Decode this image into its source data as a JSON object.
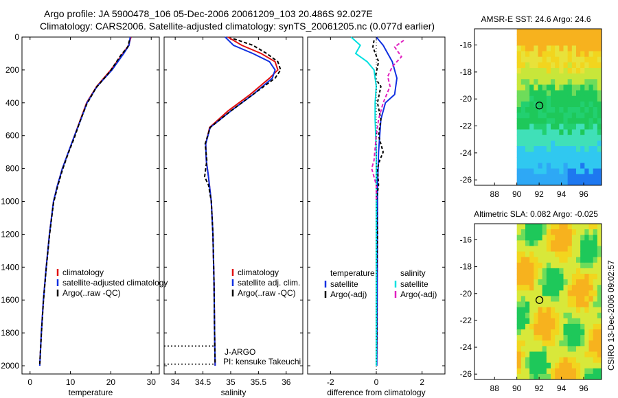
{
  "header": {
    "line1": "Argo profile: JA 5900478_106 05-Dec-2006 20061209_103 20.486S 92.027E",
    "line2": "Climatology: CARS2006. Satellite-adjusted climatology: synTS_20061205.nc (0.077d earlier)"
  },
  "colors": {
    "climatology": "#e01010",
    "satellite": "#1030e0",
    "argo": "#000000",
    "salinity_satellite": "#00e0e0",
    "salinity_argo": "#e020c0"
  },
  "stamp": "CSIRO 13-Dec-2006 09:02:57",
  "chart_data": [
    {
      "id": "temperature",
      "type": "line",
      "xlabel": "temperature",
      "ylabel": "",
      "xlim": [
        -2,
        32
      ],
      "ylim": [
        2050,
        0
      ],
      "xticks": [
        0,
        10,
        20,
        30
      ],
      "yticks": [
        0,
        200,
        400,
        600,
        800,
        1000,
        1200,
        1400,
        1600,
        1800,
        2000
      ],
      "legend": [
        "climatology",
        "satellite-adjusted climatology",
        "Argo(..raw -QC)"
      ],
      "series": [
        {
          "name": "climatology",
          "color": "#e01010",
          "dash": "",
          "x": [
            25.0,
            24.4,
            23.0,
            20.0,
            16.5,
            14.0,
            12.5,
            11.0,
            9.5,
            8.0,
            6.8,
            5.8,
            4.8,
            4.0,
            3.3,
            2.8,
            2.4
          ],
          "y": [
            0,
            50,
            100,
            200,
            300,
            400,
            500,
            600,
            700,
            800,
            900,
            1000,
            1200,
            1400,
            1600,
            1800,
            2000
          ]
        },
        {
          "name": "satellite-adjusted climatology",
          "color": "#1030e0",
          "dash": "",
          "x": [
            24.8,
            24.5,
            23.2,
            20.3,
            16.6,
            14.1,
            12.6,
            11.0,
            9.5,
            8.0,
            6.8,
            5.8,
            4.8,
            4.0,
            3.3,
            2.8,
            2.4
          ],
          "y": [
            0,
            50,
            100,
            200,
            300,
            400,
            500,
            600,
            700,
            800,
            900,
            1000,
            1200,
            1400,
            1600,
            1800,
            2000
          ]
        },
        {
          "name": "Argo(..raw -QC)",
          "color": "#000000",
          "dash": "5,3",
          "x": [
            24.6,
            24.2,
            22.5,
            19.8,
            16.3,
            14.0,
            12.4,
            11.0,
            9.4,
            8.0,
            6.8,
            5.8,
            4.8,
            4.0,
            3.3,
            2.8,
            2.4
          ],
          "y": [
            20,
            60,
            110,
            210,
            310,
            410,
            510,
            610,
            710,
            810,
            910,
            1010,
            1210,
            1410,
            1610,
            1810,
            1990
          ]
        }
      ]
    },
    {
      "id": "salinity",
      "type": "line",
      "xlabel": "salinity",
      "ylabel": "",
      "xlim": [
        33.8,
        36.3
      ],
      "ylim": [
        2050,
        0
      ],
      "xticks": [
        34,
        34.5,
        35,
        35.5,
        36
      ],
      "legend": [
        "climatology",
        "satellite adj. clim.",
        "Argo(..raw -QC)"
      ],
      "annotation": [
        "J-ARGO",
        "PI: kensuke Takeuchi"
      ],
      "markers": [
        1880,
        1990
      ],
      "series": [
        {
          "name": "climatology",
          "color": "#e01010",
          "dash": "",
          "x": [
            34.95,
            35.2,
            35.55,
            35.8,
            35.85,
            35.7,
            35.35,
            34.95,
            34.62,
            34.55,
            34.56,
            34.6,
            34.65,
            34.68,
            34.7,
            34.71,
            34.72
          ],
          "y": [
            0,
            50,
            100,
            150,
            200,
            250,
            350,
            450,
            550,
            650,
            750,
            850,
            1000,
            1200,
            1500,
            1800,
            2000
          ]
        },
        {
          "name": "satellite adj. clim.",
          "color": "#1030e0",
          "dash": "",
          "x": [
            34.9,
            35.05,
            35.4,
            35.7,
            35.8,
            35.75,
            35.4,
            35.0,
            34.63,
            34.55,
            34.56,
            34.6,
            34.65,
            34.68,
            34.7,
            34.71,
            34.72
          ],
          "y": [
            0,
            50,
            100,
            150,
            200,
            250,
            350,
            450,
            550,
            650,
            750,
            850,
            1000,
            1200,
            1500,
            1800,
            2000
          ]
        },
        {
          "name": "Argo(..raw -QC)",
          "color": "#000000",
          "dash": "5,3",
          "x": [
            35.05,
            35.4,
            35.65,
            35.85,
            35.9,
            35.8,
            35.4,
            35.0,
            34.63,
            34.54,
            34.57,
            34.53,
            34.6,
            34.65,
            34.68,
            34.7,
            34.71,
            34.72
          ],
          "y": [
            10,
            50,
            100,
            150,
            200,
            250,
            350,
            450,
            550,
            650,
            750,
            850,
            900,
            1000,
            1200,
            1500,
            1800,
            1990
          ]
        }
      ]
    },
    {
      "id": "difference",
      "type": "line",
      "xlabel": "difference from climatology",
      "ylabel": "",
      "xlim": [
        -3,
        3
      ],
      "ylim": [
        2050,
        0
      ],
      "xticks": [
        -2,
        0,
        2
      ],
      "legend_title_left": "temperature",
      "legend_title_right": "salinity",
      "legend": [
        "satellite",
        "Argo(-adj)",
        "satellite",
        "Argo(-adj)"
      ],
      "series": [
        {
          "name": "temperature satellite",
          "color": "#1030e0",
          "dash": "",
          "x": [
            0.0,
            0.3,
            0.7,
            0.9,
            0.8,
            0.4,
            0.2,
            0.15,
            0.1,
            0.08,
            0.05,
            0.05,
            0.04,
            0.03,
            0.02
          ],
          "y": [
            0,
            50,
            150,
            250,
            350,
            400,
            500,
            600,
            700,
            800,
            900,
            1200,
            1500,
            1800,
            2000
          ]
        },
        {
          "name": "temperature Argo(-adj)",
          "color": "#000000",
          "dash": "4,3",
          "x": [
            -0.1,
            -0.15,
            0.1,
            -0.05,
            0.2,
            0.05,
            0.2,
            0.1,
            0.3,
            0.15,
            0.05,
            0.1,
            0.0,
            0.05,
            0.0,
            0.02,
            0.0
          ],
          "y": [
            20,
            60,
            150,
            250,
            300,
            400,
            500,
            600,
            700,
            750,
            800,
            900,
            1000,
            1200,
            1500,
            1800,
            1990
          ]
        },
        {
          "name": "salinity satellite",
          "color": "#00e0e0",
          "dash": "",
          "x": [
            -1.1,
            -0.7,
            -0.9,
            -0.4,
            -0.1,
            0.0,
            -0.05,
            -0.05,
            0.0,
            0.0,
            0.0,
            0.0,
            0.0
          ],
          "y": [
            0,
            50,
            100,
            150,
            200,
            300,
            400,
            500,
            700,
            900,
            1200,
            1600,
            2000
          ]
        },
        {
          "name": "salinity Argo(-adj)",
          "color": "#e020c0",
          "dash": "5,3",
          "x": [
            1.2,
            0.8,
            1.1,
            0.7,
            0.5,
            0.6,
            0.3,
            0.1,
            0.0,
            -0.1,
            -0.2,
            0.0,
            0.0
          ],
          "y": [
            20,
            60,
            120,
            180,
            240,
            300,
            400,
            500,
            600,
            750,
            800,
            900,
            1000
          ]
        }
      ]
    },
    {
      "id": "sst-map",
      "type": "heatmap",
      "title": "AMSR-E SST: 24.6 Argo: 24.6",
      "xticks": [
        88,
        90,
        92,
        94,
        96
      ],
      "yticks": [
        -16,
        -18,
        -20,
        -22,
        -24,
        -26
      ],
      "xlim": [
        86.2,
        97.6
      ],
      "ylim": [
        -26.4,
        -14.8
      ],
      "data_xlim": [
        90,
        97.6
      ],
      "float_position": [
        92.027,
        -20.486
      ]
    },
    {
      "id": "sla-map",
      "type": "heatmap",
      "title": "Altimetric SLA: 0.082 Argo: -0.025",
      "xticks": [
        88,
        90,
        92,
        94,
        96
      ],
      "yticks": [
        -16,
        -18,
        -20,
        -22,
        -24,
        -26
      ],
      "xlim": [
        86.2,
        97.6
      ],
      "ylim": [
        -26.4,
        -14.8
      ],
      "data_xlim": [
        90,
        97.6
      ],
      "float_position": [
        92.027,
        -20.486
      ]
    }
  ]
}
